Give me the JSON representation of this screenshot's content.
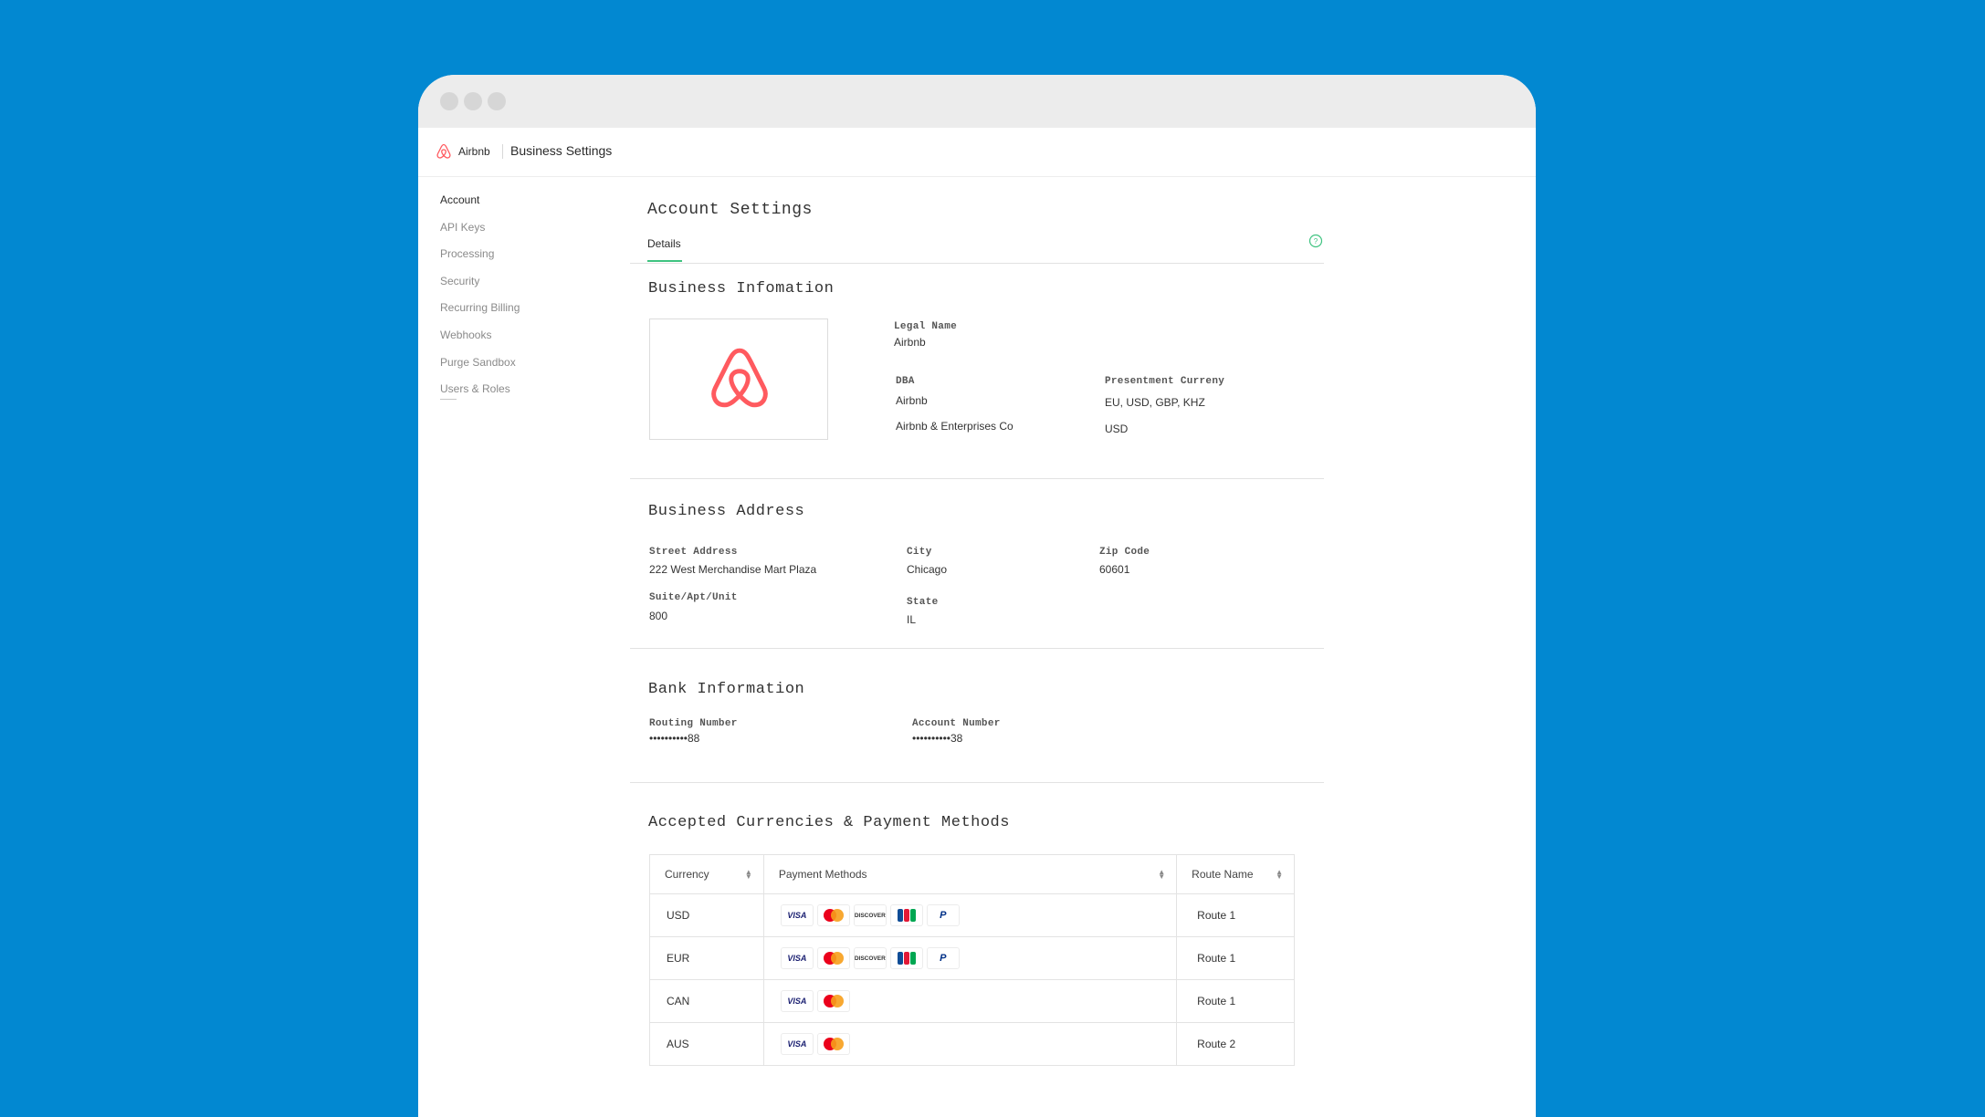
{
  "app": {
    "brand_name": "Airbnb",
    "page_title": "Business Settings"
  },
  "sidebar": {
    "items": [
      {
        "label": "Account",
        "active": true
      },
      {
        "label": "API Keys"
      },
      {
        "label": "Processing"
      },
      {
        "label": "Security"
      },
      {
        "label": "Recurring Billing"
      },
      {
        "label": "Webhooks"
      },
      {
        "label": "Purge Sandbox"
      },
      {
        "label": "Users & Roles"
      }
    ]
  },
  "main": {
    "title": "Account Settings",
    "tabs": [
      {
        "label": "Details",
        "active": true
      }
    ],
    "help_icon": "question-circle-icon"
  },
  "business_info": {
    "title": "Business Infomation",
    "logo_icon": "airbnb-logo-icon",
    "legal_name_label": "Legal Name",
    "legal_name": "Airbnb",
    "dba_label": "DBA",
    "dba_values": [
      "Airbnb",
      "Airbnb & Enterprises Co"
    ],
    "presentment_label": "Presentment Curreny",
    "presentment_values": [
      "EU, USD, GBP, KHZ",
      "USD"
    ]
  },
  "business_address": {
    "title": "Business Address",
    "street_label": "Street Address",
    "street": "222 West Merchandise Mart Plaza",
    "suite_label": "Suite/Apt/Unit",
    "suite": "800",
    "city_label": "City",
    "city": "Chicago",
    "state_label": "State",
    "state": "IL",
    "zip_label": "Zip Code",
    "zip": "60601"
  },
  "bank_info": {
    "title": "Bank Information",
    "routing_label": "Routing Number",
    "routing": "••••••••••88",
    "account_label": "Account Number",
    "account": "••••••••••38"
  },
  "payment_methods": {
    "title": "Accepted Currencies & Payment Methods",
    "columns": [
      "Currency",
      "Payment Methods",
      "Route Name"
    ],
    "card_text": {
      "visa": "VISA",
      "discover": "DISCOVER",
      "paypal": "P"
    },
    "rows": [
      {
        "currency": "USD",
        "methods": [
          "visa",
          "mastercard",
          "discover",
          "jcb",
          "paypal"
        ],
        "route": "Route 1"
      },
      {
        "currency": "EUR",
        "methods": [
          "visa",
          "mastercard",
          "discover",
          "jcb",
          "paypal"
        ],
        "route": "Route 1"
      },
      {
        "currency": "CAN",
        "methods": [
          "visa",
          "mastercard"
        ],
        "route": "Route 1"
      },
      {
        "currency": "AUS",
        "methods": [
          "visa",
          "mastercard"
        ],
        "route": "Route 2"
      }
    ]
  },
  "colors": {
    "background": "#0288d1",
    "accent": "#3fc380",
    "brand": "#ff5a5f"
  }
}
